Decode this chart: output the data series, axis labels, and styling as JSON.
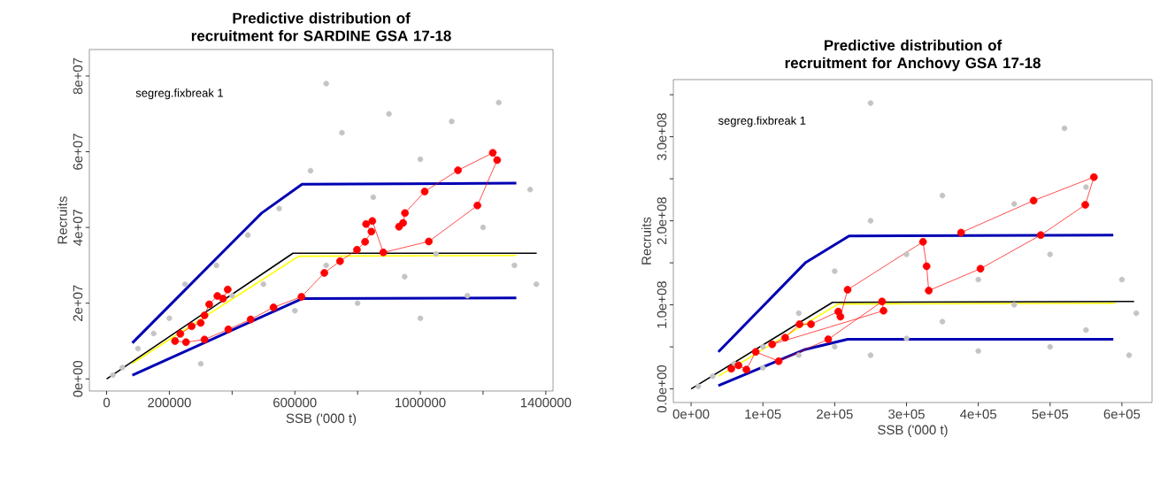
{
  "chart_data": [
    {
      "type": "line",
      "title": "Predictive distribution of recruitment for SARDINE GSA 17-18",
      "xlabel": "SSB ('000 t)",
      "ylabel": "Recruits",
      "annotations": [
        "segreg.fixbreak 1"
      ],
      "xlim": [
        -55000,
        1423000
      ],
      "ylim": [
        -3200000,
        87000000
      ],
      "xticks": [
        0,
        200000,
        {
          "value": 400000,
          "label": null
        },
        600000,
        {
          "value": 800000,
          "label": null
        },
        1000000,
        {
          "value": 1200000,
          "label": null
        },
        1400000
      ],
      "yticks": [
        {
          "value": 0,
          "label": "0e+00"
        },
        {
          "value": 20000000,
          "label": "2e+07"
        },
        {
          "value": 40000000,
          "label": "4e+07"
        },
        {
          "value": 60000000,
          "label": "6e+07"
        },
        {
          "value": 80000000,
          "label": "8e+07"
        }
      ],
      "series": [
        {
          "type": "scatter",
          "color": "#c4c4c4",
          "marker": "circle",
          "x": [
            20000,
            50000,
            100000,
            150000,
            200000,
            250000,
            300000,
            350000,
            400000,
            450000,
            500000,
            550000,
            600000,
            650000,
            700000,
            750000,
            800000,
            850000,
            900000,
            950000,
            1000000,
            1050000,
            1100000,
            1150000,
            1200000,
            1250000,
            1300000,
            1350000,
            1370000,
            1000000,
            700000
          ],
          "values": [
            1000000,
            3000000,
            8000000,
            12000000,
            16000000,
            25000000,
            4000000,
            30000000,
            22000000,
            38000000,
            25000000,
            45000000,
            18000000,
            55000000,
            30000000,
            65000000,
            20000000,
            48000000,
            70000000,
            27000000,
            58000000,
            33000000,
            68000000,
            22000000,
            40000000,
            73000000,
            30000000,
            50000000,
            25000000,
            16000000,
            78000000
          ]
        },
        {
          "color": "#0000b4",
          "x": [
            82000,
            494000,
            623000,
            1306000
          ],
          "values": [
            9500000,
            43800000,
            51400000,
            51700000
          ]
        },
        {
          "color": "#0000b4",
          "x": [
            82000,
            623000,
            1306000
          ],
          "values": [
            1000000,
            21200000,
            21400000
          ]
        },
        {
          "color": "#ffff00",
          "x": [
            82000,
            612000,
            1306000
          ],
          "values": [
            4100000,
            32400000,
            32600000
          ]
        },
        {
          "color": "#000000",
          "x": [
            0,
            594000,
            1371000
          ],
          "values": [
            0,
            33200000,
            33200000
          ]
        },
        {
          "color": "#ff0000",
          "marker": "circle",
          "x": [
            386000,
            371000,
            353000,
            327000,
            312000,
            300000,
            271000,
            235000,
            218000,
            253000,
            312000,
            388000,
            459000,
            532000,
            621000,
            694000,
            744000,
            798000,
            824000,
            844000,
            827000,
            847000,
            882000,
            1027000,
            1182000,
            1245000,
            1231000,
            1120000,
            1014000,
            951000,
            945000,
            932000
          ],
          "values": [
            23600000,
            21200000,
            21900000,
            19700000,
            16800000,
            14800000,
            13900000,
            11900000,
            10000000,
            9700000,
            10400000,
            13100000,
            15700000,
            18900000,
            21700000,
            28000000,
            31100000,
            34100000,
            36200000,
            38900000,
            40900000,
            41700000,
            33400000,
            36300000,
            45800000,
            57800000,
            59700000,
            55100000,
            49500000,
            43800000,
            41200000,
            40200000
          ]
        }
      ]
    },
    {
      "type": "line",
      "title": "Predictive distribution of recruitment for Anchovy GSA 17-18",
      "xlabel": "SSB ('000 t)",
      "ylabel": "Recruits",
      "annotations": [
        "segreg.fixbreak 1"
      ],
      "xlim": [
        -24700,
        642000
      ],
      "ylim": [
        -16200000,
        368000000
      ],
      "xticks": [
        {
          "value": 0,
          "label": "0e+00"
        },
        {
          "value": 100000,
          "label": "1e+05"
        },
        {
          "value": 200000,
          "label": "2e+05"
        },
        {
          "value": 300000,
          "label": "3e+05"
        },
        {
          "value": 400000,
          "label": "4e+05"
        },
        {
          "value": 500000,
          "label": "5e+05"
        },
        {
          "value": 600000,
          "label": "6e+05"
        }
      ],
      "yticks": [
        {
          "value": 0,
          "label": "0.0e+00"
        },
        {
          "value": 50000000,
          "label": null
        },
        {
          "value": 100000000,
          "label": "1.0e+08"
        },
        {
          "value": 150000000,
          "label": null
        },
        {
          "value": 200000000,
          "label": "2.0e+08"
        },
        {
          "value": 250000000,
          "label": null
        },
        {
          "value": 300000000,
          "label": "3.0e+08"
        },
        {
          "value": 350000000,
          "label": null
        }
      ],
      "series": [
        {
          "type": "scatter",
          "color": "#c4c4c4",
          "marker": "circle",
          "x": [
            10000,
            30000,
            60000,
            100000,
            100000,
            150000,
            150000,
            200000,
            200000,
            250000,
            250000,
            300000,
            300000,
            350000,
            350000,
            400000,
            400000,
            450000,
            450000,
            500000,
            500000,
            550000,
            550000,
            600000,
            610000,
            620000,
            250000,
            520000
          ],
          "values": [
            3000000,
            15000000,
            30000000,
            50000000,
            25000000,
            90000000,
            40000000,
            140000000,
            50000000,
            200000000,
            40000000,
            160000000,
            60000000,
            230000000,
            80000000,
            130000000,
            45000000,
            220000000,
            100000000,
            160000000,
            50000000,
            240000000,
            70000000,
            130000000,
            40000000,
            90000000,
            340000000,
            310000000
          ]
        },
        {
          "color": "#0000b4",
          "x": [
            38000,
            159000,
            220000,
            588000
          ],
          "values": [
            44000000,
            150000000,
            182000000,
            183000000
          ]
        },
        {
          "color": "#0000b4",
          "x": [
            38000,
            159000,
            218000,
            588000
          ],
          "values": [
            4000000,
            47000000,
            59000000,
            59000000
          ]
        },
        {
          "color": "#ffff00",
          "x": [
            38000,
            205000,
            591000
          ],
          "values": [
            15000000,
            101000000,
            102000000
          ]
        },
        {
          "color": "#000000",
          "x": [
            0,
            197000,
            617000
          ],
          "values": [
            0,
            103000000,
            104000000
          ]
        },
        {
          "color": "#ff0000",
          "marker": "circle",
          "x": [
            56000,
            66000,
            77000,
            90000,
            122000,
            191000,
            266000,
            268000,
            113000,
            131000,
            151000,
            167000,
            205000,
            208000,
            218000,
            323000,
            328000,
            331000,
            403000,
            487000,
            549000,
            561000,
            477000,
            376000
          ],
          "values": [
            24000000,
            28000000,
            23000000,
            44000000,
            33000000,
            59000000,
            104000000,
            93000000,
            53000000,
            61000000,
            77000000,
            77000000,
            92000000,
            86000000,
            118000000,
            175000000,
            146000000,
            117000000,
            143000000,
            183000000,
            219000000,
            252000000,
            224000000,
            186000000
          ]
        }
      ]
    }
  ]
}
